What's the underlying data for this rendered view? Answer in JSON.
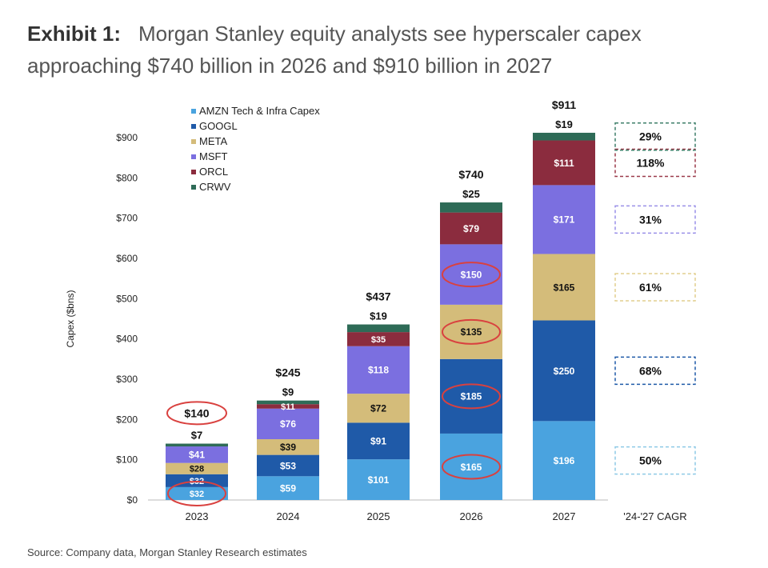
{
  "header": {
    "label": "Exhibit 1:",
    "title": "Morgan Stanley equity analysts see hyperscaler capex approaching $740 billion in 2026 and $910 billion in 2027"
  },
  "source": "Source: Company data, Morgan Stanley Research estimates",
  "chart_data": {
    "type": "bar",
    "stacked": true,
    "ylabel": "Capex ($bns)",
    "ylim": [
      0,
      900
    ],
    "yticks": [
      "$0",
      "$100",
      "$200",
      "$300",
      "$400",
      "$500",
      "$600",
      "$700",
      "$800",
      "$900"
    ],
    "categories": [
      "2023",
      "2024",
      "2025",
      "2026",
      "2027"
    ],
    "extra_category": "'24-'27 CAGR",
    "legend_position": "top-left",
    "series": [
      {
        "name": "AMZN Tech & Infra Capex",
        "color": "#4aa3df",
        "values": [
          32,
          59,
          101,
          165,
          196
        ],
        "labels": [
          "$32",
          "$59",
          "$101",
          "$165",
          "$196"
        ],
        "cagr": "50%",
        "cagr_color": "#8ecae6"
      },
      {
        "name": "GOOGL",
        "color": "#1f5aa8",
        "values": [
          32,
          53,
          91,
          185,
          250
        ],
        "labels": [
          "$32",
          "$53",
          "$91",
          "$185",
          "$250"
        ],
        "cagr": "68%",
        "cagr_color": "#1f5aa8"
      },
      {
        "name": "META",
        "color": "#d4bc7a",
        "values": [
          28,
          39,
          72,
          135,
          165
        ],
        "labels": [
          "$28",
          "$39",
          "$72",
          "$135",
          "$165"
        ],
        "cagr": "61%",
        "cagr_color": "#e2cf8f"
      },
      {
        "name": "MSFT",
        "color": "#7b6fe0",
        "values": [
          41,
          76,
          118,
          150,
          171
        ],
        "labels": [
          "$41",
          "$76",
          "$118",
          "$150",
          "$171"
        ],
        "cagr": "31%",
        "cagr_color": "#9a90e8"
      },
      {
        "name": "ORCL",
        "color": "#8b2c3e",
        "values": [
          0,
          11,
          35,
          79,
          111
        ],
        "labels": [
          "",
          "$11",
          "$35",
          "$79",
          "$111"
        ],
        "cagr": "118%",
        "cagr_color": "#9b3a4a"
      },
      {
        "name": "CRWV",
        "color": "#2e6b57",
        "values": [
          7,
          9,
          19,
          25,
          19
        ],
        "labels": [
          "$7",
          "$9",
          "$19",
          "$25",
          "$19"
        ],
        "cagr": "29%",
        "cagr_color": "#3e7f6a"
      }
    ],
    "totals": [
      "$140",
      "$245",
      "$437",
      "$740",
      "$911"
    ],
    "highlighted": [
      {
        "category": "2023",
        "target": "total"
      },
      {
        "category": "2023",
        "target": "AMZN Tech & Infra Capex"
      },
      {
        "category": "2026",
        "target": "AMZN Tech & Infra Capex"
      },
      {
        "category": "2026",
        "target": "GOOGL"
      },
      {
        "category": "2026",
        "target": "META"
      },
      {
        "category": "2026",
        "target": "MSFT"
      }
    ]
  }
}
